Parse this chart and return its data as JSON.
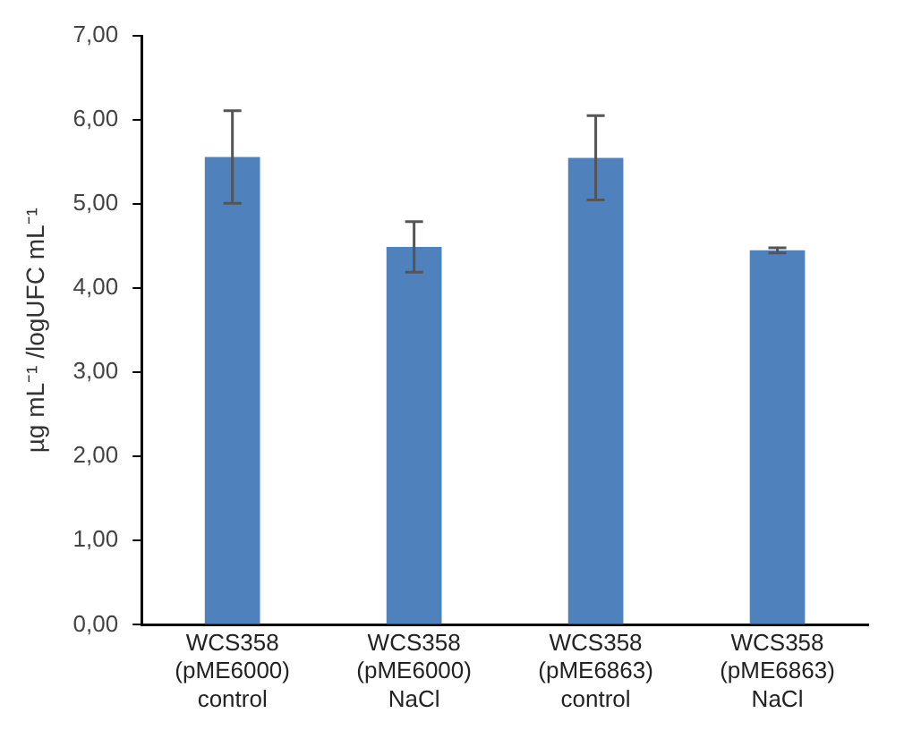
{
  "chart_data": {
    "type": "bar",
    "categories": [
      "WCS358 (pME6000) control",
      "WCS358 (pME6000) NaCl",
      "WCS358 (pME6863) control",
      "WCS358 (pME6863) NaCl"
    ],
    "values": [
      5.56,
      4.49,
      5.55,
      4.45
    ],
    "errors": [
      0.55,
      0.3,
      0.5,
      0.03
    ],
    "color": "#4f81bd",
    "ylabel": "µg mL⁻¹ /logUFC mL⁻¹",
    "ylim": [
      0,
      7
    ],
    "yticks": [
      {
        "value": 0,
        "label": "0,00"
      },
      {
        "value": 1,
        "label": "1,00"
      },
      {
        "value": 2,
        "label": "2,00"
      },
      {
        "value": 3,
        "label": "3,00"
      },
      {
        "value": 4,
        "label": "4,00"
      },
      {
        "value": 5,
        "label": "5,00"
      },
      {
        "value": 6,
        "label": "6,00"
      },
      {
        "value": 7,
        "label": "7,00"
      }
    ],
    "grid": false,
    "legend": false
  }
}
